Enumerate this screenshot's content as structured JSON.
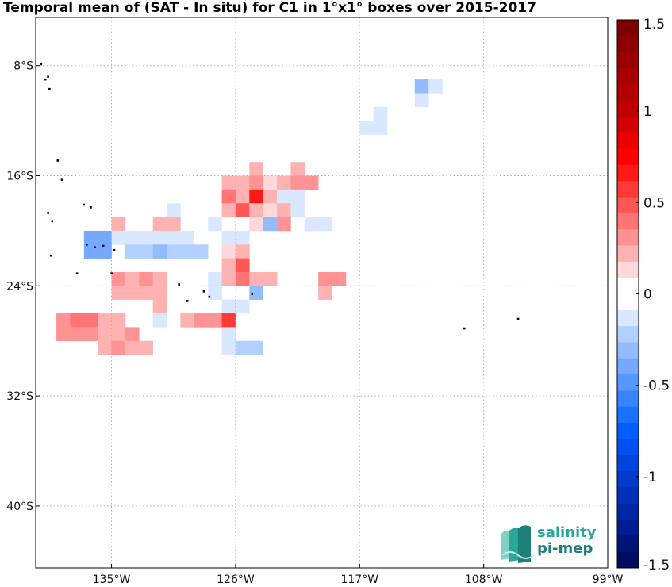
{
  "title": "Temporal mean of (SAT - In situ) for C1 in 1°x1° boxes over 2015-2017",
  "map": {
    "lon_range": [
      -140.5,
      -99
    ],
    "lat_range": [
      -44.5,
      -4.5
    ],
    "lon_ticks": [
      {
        "value": -135,
        "label": "135°W"
      },
      {
        "value": -126,
        "label": "126°W"
      },
      {
        "value": -117,
        "label": "117°W"
      },
      {
        "value": -108,
        "label": "108°W"
      },
      {
        "value": -99,
        "label": "99°W"
      }
    ],
    "lat_ticks": [
      {
        "value": -8,
        "label": "8°S"
      },
      {
        "value": -16,
        "label": "16°S"
      },
      {
        "value": -24,
        "label": "24°S"
      },
      {
        "value": -32,
        "label": "32°S"
      },
      {
        "value": -40,
        "label": "40°S"
      }
    ],
    "grid": true,
    "grid_color": "#b0b0b0",
    "land_color": "#000000"
  },
  "colorbar": {
    "min": -1.5,
    "max": 1.5,
    "ticks": [
      {
        "value": 1.5,
        "label": "1.5"
      },
      {
        "value": 1,
        "label": "1"
      },
      {
        "value": 0.5,
        "label": "0.5"
      },
      {
        "value": 0,
        "label": "0"
      },
      {
        "value": -0.5,
        "label": "-0.5"
      },
      {
        "value": -1,
        "label": "-1"
      },
      {
        "value": -1.5,
        "label": "-1.5"
      }
    ],
    "colors_top_to_bottom": [
      "#7f0000",
      "#8c0000",
      "#990000",
      "#a60000",
      "#b30000",
      "#c00000",
      "#d20000",
      "#e80000",
      "#ff0000",
      "#ff1a1a",
      "#ff3838",
      "#ff5656",
      "#ff7575",
      "#ff9393",
      "#ffb2b2",
      "#ffd9d9",
      "#ffffff",
      "#ffffff",
      "#d9e8ff",
      "#b2d0ff",
      "#93bcff",
      "#75a9ff",
      "#5696ff",
      "#3883ff",
      "#1a70ff",
      "#005dff",
      "#0050f0",
      "#0044de",
      "#003acb",
      "#0030b8",
      "#0026a4",
      "#001c90",
      "#001478",
      "#000c60"
    ]
  },
  "chart_data": {
    "type": "heatmap",
    "title": "Temporal mean of (SAT - In situ) for C1 in 1°x1° boxes over 2015-2017",
    "xlabel": "",
    "ylabel": "",
    "xlim": [
      -140.5,
      -99
    ],
    "ylim": [
      -44.5,
      -4.5
    ],
    "cell_size_deg": 1,
    "colorbar_range": [
      -1.5,
      1.5
    ],
    "cells": [
      {
        "lon": -112.5,
        "lat": -9.5,
        "value": -0.3
      },
      {
        "lon": -111.5,
        "lat": -9.5,
        "value": -0.1
      },
      {
        "lon": -112.5,
        "lat": -10.5,
        "value": -0.1
      },
      {
        "lon": -115.5,
        "lat": -11.5,
        "value": -0.1
      },
      {
        "lon": -115.5,
        "lat": -12.5,
        "value": -0.1
      },
      {
        "lon": -116.5,
        "lat": -12.5,
        "value": -0.1
      },
      {
        "lon": -124.5,
        "lat": -15.5,
        "value": 0.2
      },
      {
        "lon": -121.5,
        "lat": -15.5,
        "value": 0.2
      },
      {
        "lon": -126.5,
        "lat": -16.5,
        "value": 0.2
      },
      {
        "lon": -125.5,
        "lat": -16.5,
        "value": 0.2
      },
      {
        "lon": -124.5,
        "lat": -16.5,
        "value": 0.3
      },
      {
        "lon": -123.5,
        "lat": -16.5,
        "value": 0.1
      },
      {
        "lon": -122.5,
        "lat": -16.5,
        "value": 0.2
      },
      {
        "lon": -121.5,
        "lat": -16.5,
        "value": 0.3
      },
      {
        "lon": -120.5,
        "lat": -16.5,
        "value": 0.3
      },
      {
        "lon": -126.5,
        "lat": -17.5,
        "value": 0.4
      },
      {
        "lon": -125.5,
        "lat": -17.5,
        "value": 0.2
      },
      {
        "lon": -124.5,
        "lat": -17.5,
        "value": 0.7
      },
      {
        "lon": -123.5,
        "lat": -17.5,
        "value": 0.2
      },
      {
        "lon": -122.5,
        "lat": -17.5,
        "value": -0.1
      },
      {
        "lon": -121.5,
        "lat": -17.5,
        "value": -0.1
      },
      {
        "lon": -130.5,
        "lat": -18.5,
        "value": -0.1
      },
      {
        "lon": -126.5,
        "lat": -18.5,
        "value": 0.2
      },
      {
        "lon": -125.5,
        "lat": -18.5,
        "value": 0.5
      },
      {
        "lon": -124.5,
        "lat": -18.5,
        "value": 0.2
      },
      {
        "lon": -123.5,
        "lat": -18.5,
        "value": 0.1
      },
      {
        "lon": -122.5,
        "lat": -18.5,
        "value": 0.2
      },
      {
        "lon": -121.5,
        "lat": -18.5,
        "value": -0.1
      },
      {
        "lon": -134.5,
        "lat": -19.5,
        "value": 0.2
      },
      {
        "lon": -131.5,
        "lat": -19.5,
        "value": 0.2
      },
      {
        "lon": -130.5,
        "lat": -19.5,
        "value": 0.2
      },
      {
        "lon": -127.5,
        "lat": -19.5,
        "value": -0.1
      },
      {
        "lon": -124.5,
        "lat": -19.5,
        "value": 0.1
      },
      {
        "lon": -123.5,
        "lat": -19.5,
        "value": -0.3
      },
      {
        "lon": -122.5,
        "lat": -19.5,
        "value": 0.3
      },
      {
        "lon": -120.5,
        "lat": -19.5,
        "value": -0.1
      },
      {
        "lon": -119.5,
        "lat": -19.5,
        "value": -0.1
      },
      {
        "lon": -136.5,
        "lat": -20.5,
        "value": -0.4
      },
      {
        "lon": -135.5,
        "lat": -20.5,
        "value": -0.4
      },
      {
        "lon": -134.5,
        "lat": -20.5,
        "value": -0.1
      },
      {
        "lon": -133.5,
        "lat": -20.5,
        "value": -0.1
      },
      {
        "lon": -132.5,
        "lat": -20.5,
        "value": -0.1
      },
      {
        "lon": -131.5,
        "lat": -20.5,
        "value": -0.1
      },
      {
        "lon": -130.5,
        "lat": -20.5,
        "value": -0.1
      },
      {
        "lon": -129.5,
        "lat": -20.5,
        "value": -0.1
      },
      {
        "lon": -126.5,
        "lat": -20.5,
        "value": -0.1
      },
      {
        "lon": -125.5,
        "lat": -20.5,
        "value": -0.1
      },
      {
        "lon": -136.5,
        "lat": -21.5,
        "value": -0.4
      },
      {
        "lon": -135.5,
        "lat": -21.5,
        "value": -0.4
      },
      {
        "lon": -133.5,
        "lat": -21.5,
        "value": -0.2
      },
      {
        "lon": -132.5,
        "lat": -21.5,
        "value": -0.2
      },
      {
        "lon": -131.5,
        "lat": -21.5,
        "value": -0.3
      },
      {
        "lon": -130.5,
        "lat": -21.5,
        "value": -0.2
      },
      {
        "lon": -129.5,
        "lat": -21.5,
        "value": -0.2
      },
      {
        "lon": -128.5,
        "lat": -21.5,
        "value": -0.2
      },
      {
        "lon": -126.5,
        "lat": -21.5,
        "value": 0.1
      },
      {
        "lon": -125.5,
        "lat": -21.5,
        "value": 0.2
      },
      {
        "lon": -126.5,
        "lat": -22.5,
        "value": 0.2
      },
      {
        "lon": -125.5,
        "lat": -22.5,
        "value": 0.5
      },
      {
        "lon": -134.5,
        "lat": -23.5,
        "value": 0.3
      },
      {
        "lon": -133.5,
        "lat": -23.5,
        "value": 0.2
      },
      {
        "lon": -132.5,
        "lat": -23.5,
        "value": 0.3
      },
      {
        "lon": -131.5,
        "lat": -23.5,
        "value": 0.2
      },
      {
        "lon": -127.5,
        "lat": -23.5,
        "value": -0.1
      },
      {
        "lon": -126.5,
        "lat": -23.5,
        "value": 0.2
      },
      {
        "lon": -125.5,
        "lat": -23.5,
        "value": 0.4
      },
      {
        "lon": -124.5,
        "lat": -23.5,
        "value": 0.2
      },
      {
        "lon": -123.5,
        "lat": -23.5,
        "value": 0.2
      },
      {
        "lon": -119.5,
        "lat": -23.5,
        "value": 0.3
      },
      {
        "lon": -118.5,
        "lat": -23.5,
        "value": 0.3
      },
      {
        "lon": -134.5,
        "lat": -24.5,
        "value": 0.2
      },
      {
        "lon": -133.5,
        "lat": -24.5,
        "value": 0.2
      },
      {
        "lon": -132.5,
        "lat": -24.5,
        "value": 0.2
      },
      {
        "lon": -131.5,
        "lat": -24.5,
        "value": 0.2
      },
      {
        "lon": -127.5,
        "lat": -24.5,
        "value": -0.1
      },
      {
        "lon": -124.5,
        "lat": -24.5,
        "value": -0.3
      },
      {
        "lon": -119.5,
        "lat": -24.5,
        "value": 0.2
      },
      {
        "lon": -131.5,
        "lat": -25.5,
        "value": 0.2
      },
      {
        "lon": -126.5,
        "lat": -25.5,
        "value": -0.1
      },
      {
        "lon": -125.5,
        "lat": -25.5,
        "value": -0.1
      },
      {
        "lon": -138.5,
        "lat": -26.5,
        "value": 0.3
      },
      {
        "lon": -137.5,
        "lat": -26.5,
        "value": 0.4
      },
      {
        "lon": -136.5,
        "lat": -26.5,
        "value": 0.4
      },
      {
        "lon": -135.5,
        "lat": -26.5,
        "value": 0.2
      },
      {
        "lon": -134.5,
        "lat": -26.5,
        "value": 0.2
      },
      {
        "lon": -131.5,
        "lat": -26.5,
        "value": -0.1
      },
      {
        "lon": -129.5,
        "lat": -26.5,
        "value": 0.2
      },
      {
        "lon": -128.5,
        "lat": -26.5,
        "value": 0.3
      },
      {
        "lon": -127.5,
        "lat": -26.5,
        "value": 0.3
      },
      {
        "lon": -126.5,
        "lat": -26.5,
        "value": 0.6
      },
      {
        "lon": -138.5,
        "lat": -27.5,
        "value": 0.3
      },
      {
        "lon": -137.5,
        "lat": -27.5,
        "value": 0.3
      },
      {
        "lon": -136.5,
        "lat": -27.5,
        "value": 0.3
      },
      {
        "lon": -135.5,
        "lat": -27.5,
        "value": 0.2
      },
      {
        "lon": -134.5,
        "lat": -27.5,
        "value": 0.2
      },
      {
        "lon": -133.5,
        "lat": -27.5,
        "value": 0.3
      },
      {
        "lon": -126.5,
        "lat": -27.5,
        "value": -0.1
      },
      {
        "lon": -135.5,
        "lat": -28.5,
        "value": 0.2
      },
      {
        "lon": -134.5,
        "lat": -28.5,
        "value": 0.3
      },
      {
        "lon": -133.5,
        "lat": -28.5,
        "value": 0.2
      },
      {
        "lon": -132.5,
        "lat": -28.5,
        "value": 0.2
      },
      {
        "lon": -126.5,
        "lat": -28.5,
        "value": -0.1
      },
      {
        "lon": -125.5,
        "lat": -28.5,
        "value": -0.2
      },
      {
        "lon": -124.5,
        "lat": -28.5,
        "value": -0.2
      }
    ],
    "land_points": [
      {
        "lon": -140.1,
        "lat": -7.9
      },
      {
        "lon": -139.6,
        "lat": -8.8
      },
      {
        "lon": -139.8,
        "lat": -9.0
      },
      {
        "lon": -139.5,
        "lat": -9.7
      },
      {
        "lon": -138.9,
        "lat": -14.9
      },
      {
        "lon": -138.6,
        "lat": -16.3
      },
      {
        "lon": -137.0,
        "lat": -18.1
      },
      {
        "lon": -136.5,
        "lat": -18.3
      },
      {
        "lon": -136.8,
        "lat": -21.0
      },
      {
        "lon": -136.2,
        "lat": -21.2
      },
      {
        "lon": -135.6,
        "lat": -21.1
      },
      {
        "lon": -134.8,
        "lat": -21.4
      },
      {
        "lon": -139.4,
        "lat": -21.8
      },
      {
        "lon": -135.0,
        "lat": -23.1
      },
      {
        "lon": -137.5,
        "lat": -23.1
      },
      {
        "lon": -139.6,
        "lat": -18.7
      },
      {
        "lon": -139.3,
        "lat": -19.3
      },
      {
        "lon": -130.1,
        "lat": -23.9
      },
      {
        "lon": -128.3,
        "lat": -24.4
      },
      {
        "lon": -129.5,
        "lat": -25.1
      },
      {
        "lon": -127.9,
        "lat": -24.8
      },
      {
        "lon": -124.8,
        "lat": -24.6
      },
      {
        "lon": -109.4,
        "lat": -27.1
      },
      {
        "lon": -105.5,
        "lat": -26.4
      }
    ]
  },
  "logo": {
    "line1": "salinity",
    "line2": "pi-mep",
    "colors": [
      "#2aa79b",
      "#1f7f7a",
      "#7fd1c1"
    ]
  }
}
